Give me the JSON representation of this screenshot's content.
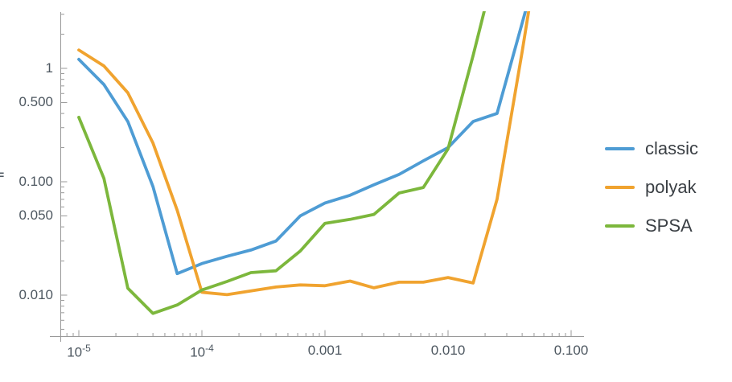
{
  "chart_data": {
    "type": "line",
    "title": "",
    "xlabel": "",
    "ylabel": "",
    "x_scale": "log",
    "y_scale": "log",
    "xlim": [
      7.1e-06,
      0.125
    ],
    "ylim": [
      0.0044,
      3.14
    ],
    "grid": false,
    "legend_position": "right-outside",
    "x": [
      1e-05,
      1.6e-05,
      2.5e-05,
      4e-05,
      6.3e-05,
      0.0001,
      0.00016,
      0.00025,
      0.0004,
      0.00063,
      0.001,
      0.0016,
      0.0025,
      0.004,
      0.0063,
      0.01,
      0.016,
      0.025,
      0.04,
      0.063
    ],
    "series": [
      {
        "name": "classic",
        "color": "#4E9CD4",
        "values": [
          1.2,
          0.72,
          0.34,
          0.091,
          0.0155,
          0.019,
          0.022,
          0.025,
          0.03,
          0.05,
          0.065,
          0.076,
          0.094,
          0.116,
          0.153,
          0.2,
          0.34,
          0.4,
          2.5,
          15
        ]
      },
      {
        "name": "polyak",
        "color": "#F0A32F",
        "values": [
          1.45,
          1.05,
          0.61,
          0.22,
          0.056,
          0.0106,
          0.0101,
          0.0109,
          0.0118,
          0.0123,
          0.0121,
          0.0133,
          0.0116,
          0.013,
          0.013,
          0.0143,
          0.0128,
          0.07,
          1.4,
          30
        ]
      },
      {
        "name": "SPSA",
        "color": "#7CB73C",
        "values": [
          0.37,
          0.107,
          0.0115,
          0.0069,
          0.0082,
          0.0111,
          0.0132,
          0.0158,
          0.0164,
          0.0245,
          0.043,
          0.0466,
          0.0515,
          0.0795,
          0.089,
          0.195,
          1.3,
          9,
          null,
          null
        ]
      }
    ],
    "x_ticks": [
      {
        "v": 1e-05,
        "base": "10",
        "exp": "-5"
      },
      {
        "v": 0.0001,
        "base": "10",
        "exp": "-4"
      },
      {
        "v": 0.001,
        "label": "0.001"
      },
      {
        "v": 0.01,
        "label": "0.010"
      },
      {
        "v": 0.1,
        "label": "0.100"
      }
    ],
    "y_ticks": [
      {
        "v": 1,
        "label": "1"
      },
      {
        "v": 0.5,
        "label": "0.500"
      },
      {
        "v": 0.1,
        "label": "0.100"
      },
      {
        "v": 0.05,
        "label": "0.050"
      },
      {
        "v": 0.01,
        "label": "0.010"
      }
    ],
    "x_minor_ticks": [
      8e-06,
      9e-06,
      2e-05,
      3e-05,
      4e-05,
      5e-05,
      6e-05,
      7e-05,
      8e-05,
      9e-05,
      0.0002,
      0.0003,
      0.0004,
      0.0005,
      0.0006,
      0.0007,
      0.0008,
      0.0009,
      0.002,
      0.003,
      0.004,
      0.005,
      0.006,
      0.007,
      0.008,
      0.009,
      0.02,
      0.03,
      0.04,
      0.05,
      0.06,
      0.07,
      0.08,
      0.09
    ],
    "y_minor_ticks": [
      0.005,
      0.006,
      0.007,
      0.008,
      0.009,
      0.02,
      0.03,
      0.04,
      0.06,
      0.07,
      0.08,
      0.09,
      0.2,
      0.3,
      0.4,
      0.6,
      0.7,
      0.8,
      0.9,
      2,
      3
    ],
    "axis_color": "#999999",
    "label_color": "#4d5760",
    "y_axis_label_fragment": "="
  }
}
